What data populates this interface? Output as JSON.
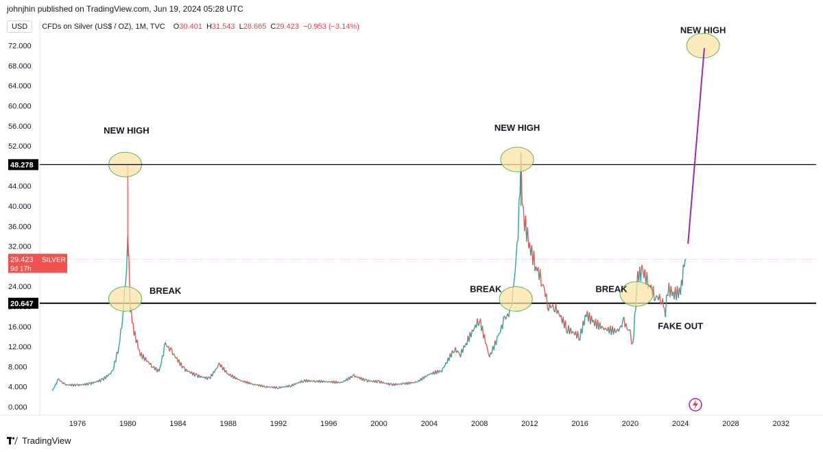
{
  "header": {
    "published": "johnjhin published on TradingView.com, Jun 19, 2024 05:28 UTC",
    "currency": "USD",
    "symbol": "CFDs on Silver (US$ / OZ), 1M, TVC",
    "ohlc": [
      {
        "label": "O",
        "value": "30.401"
      },
      {
        "label": "H",
        "value": "31.543"
      },
      {
        "label": "L",
        "value": "28.665"
      },
      {
        "label": "C",
        "value": "29.423"
      }
    ],
    "change": "−0.953 (−3.14%)"
  },
  "footer": {
    "brand": "TradingView"
  },
  "colors": {
    "up": "#26a69a",
    "down": "#ef5350",
    "highlight_fill": "#fbe3a6",
    "highlight_stroke": "#5cb85c",
    "projection": "#9c27b0",
    "price_tag": "#ef5350"
  },
  "chart_data": {
    "type": "line",
    "x": [
      1974.0,
      1974.5,
      1975.0,
      1976.0,
      1977.0,
      1978.0,
      1978.8,
      1979.3,
      1979.6,
      1979.9,
      1980.0,
      1980.2,
      1980.5,
      1981.0,
      1982.0,
      1982.5,
      1983.0,
      1983.5,
      1984.5,
      1985.5,
      1986.5,
      1987.3,
      1988.0,
      1989.0,
      1990.0,
      1991.0,
      1992.0,
      1993.0,
      1994.0,
      1995.0,
      1996.0,
      1997.0,
      1998.0,
      1999.0,
      2000.0,
      2001.0,
      2002.0,
      2003.0,
      2004.0,
      2005.0,
      2006.0,
      2006.5,
      2007.0,
      2008.0,
      2008.8,
      2009.5,
      2010.0,
      2010.5,
      2011.0,
      2011.3,
      2011.5,
      2012.0,
      2012.5,
      2013.0,
      2013.5,
      2014.0,
      2015.0,
      2016.0,
      2016.5,
      2017.0,
      2018.0,
      2019.0,
      2019.5,
      2020.0,
      2020.2,
      2020.6,
      2021.0,
      2021.5,
      2022.0,
      2022.5,
      2022.8,
      2023.0,
      2023.5,
      2024.0,
      2024.3,
      2024.45
    ],
    "values": [
      3.2,
      5.5,
      4.4,
      4.3,
      4.6,
      5.4,
      7.0,
      12.0,
      18.0,
      28.0,
      36.0,
      20.0,
      15.0,
      10.5,
      8.0,
      7.0,
      12.5,
      11.0,
      7.5,
      6.2,
      5.6,
      8.5,
      6.5,
      5.2,
      4.5,
      4.0,
      3.8,
      4.2,
      5.2,
      5.1,
      5.0,
      4.8,
      6.2,
      5.2,
      5.0,
      4.4,
      4.6,
      4.9,
      6.5,
      7.2,
      11.5,
      10.5,
      13.0,
      17.5,
      10.0,
      14.0,
      17.5,
      19.0,
      31.0,
      48.0,
      38.0,
      32.0,
      28.0,
      25.0,
      20.0,
      20.0,
      15.5,
      14.0,
      18.5,
      17.0,
      15.5,
      15.0,
      17.0,
      14.5,
      12.0,
      26.0,
      27.0,
      24.5,
      22.0,
      21.5,
      19.0,
      23.5,
      22.5,
      23.0,
      28.0,
      29.423
    ],
    "title": "CFDs on Silver (US$ / OZ), 1M, TVC",
    "last_price": "29.423",
    "last_label": "SILVER",
    "countdown": "9d 17h",
    "x_ticks": [
      "1976",
      "1980",
      "1984",
      "1988",
      "1992",
      "1996",
      "2000",
      "2004",
      "2008",
      "2012",
      "2016",
      "2020",
      "2024",
      "2028",
      "2032"
    ],
    "y_ticks": [
      "0.000",
      "4.000",
      "8.000",
      "12.000",
      "16.000",
      "20.000",
      "24.000",
      "28.000",
      "32.000",
      "36.000",
      "40.000",
      "44.000",
      "48.000",
      "52.000",
      "56.000",
      "60.000",
      "64.000",
      "68.000",
      "72.000"
    ],
    "xlim": [
      1973.0,
      2034.8
    ],
    "ylim": [
      0,
      74
    ],
    "horizontal_lines": [
      {
        "value": 48.278,
        "label": "48.278"
      },
      {
        "value": 20.647,
        "label": "20.647"
      }
    ],
    "projection": {
      "from": [
        2024.6,
        32.5
      ],
      "to": [
        2025.9,
        71.5
      ]
    },
    "annotations": [
      {
        "text": "NEW HIGH",
        "x": 1979.9,
        "y": 54.5
      },
      {
        "text": "NEW HIGH",
        "x": 2011.0,
        "y": 55.0
      },
      {
        "text": "NEW HIGH",
        "x": 2025.8,
        "y": 74.5
      },
      {
        "text": "BREAK",
        "x": 1983.0,
        "y": 22.5
      },
      {
        "text": "BREAK",
        "x": 2008.5,
        "y": 22.9
      },
      {
        "text": "BREAK",
        "x": 2018.5,
        "y": 22.9
      },
      {
        "text": "FAKE OUT",
        "x": 2024.0,
        "y": 15.5
      }
    ],
    "highlights": [
      {
        "x": 1979.8,
        "y": 48.3
      },
      {
        "x": 2011.0,
        "y": 49.3
      },
      {
        "x": 2025.8,
        "y": 72.0
      },
      {
        "x": 1979.8,
        "y": 21.5
      },
      {
        "x": 2010.9,
        "y": 21.5
      },
      {
        "x": 2020.5,
        "y": 22.5
      }
    ],
    "grid": false,
    "legend": "top-left"
  }
}
